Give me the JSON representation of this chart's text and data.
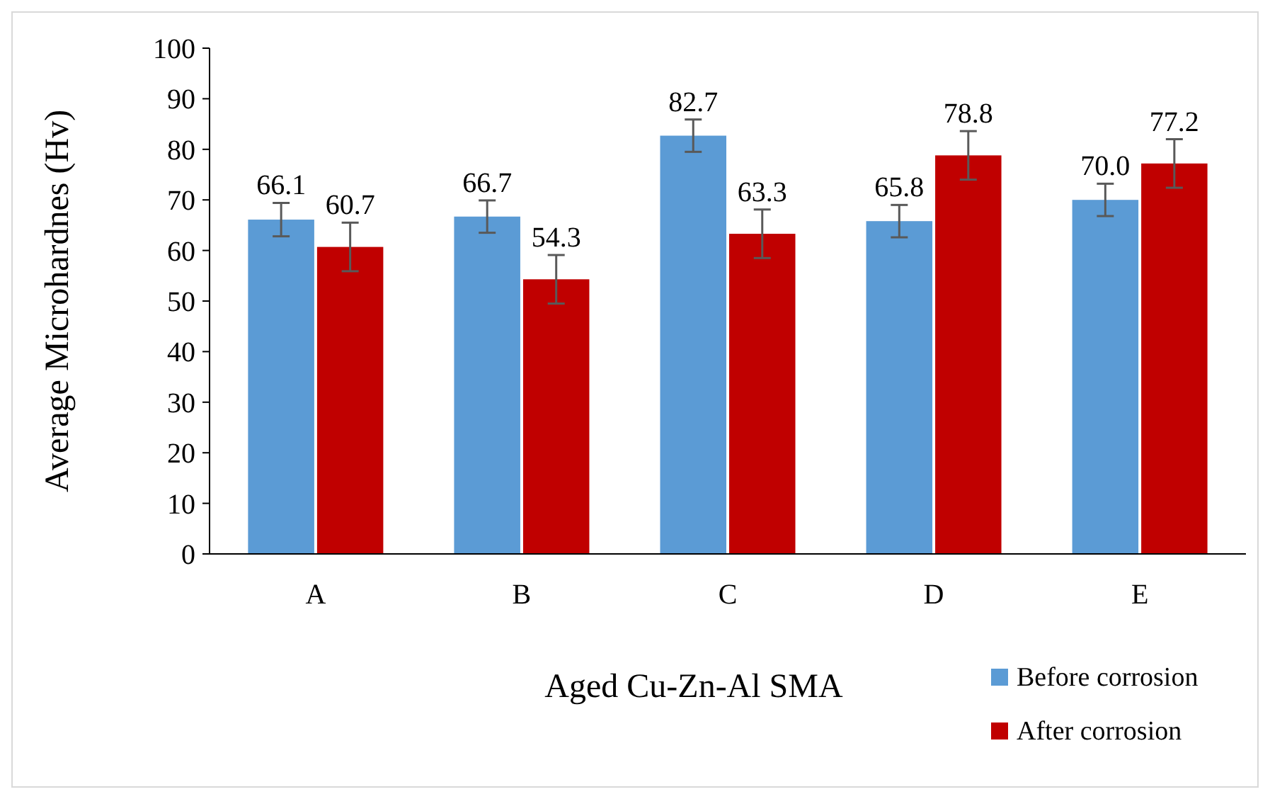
{
  "chart_data": {
    "type": "bar",
    "xlabel": "Aged Cu-Zn-Al SMA",
    "ylabel": "Average Microhardnes (Hv)",
    "categories": [
      "A",
      "B",
      "C",
      "D",
      "E"
    ],
    "ylim": [
      0,
      100
    ],
    "yticks": [
      0,
      10,
      20,
      30,
      40,
      50,
      60,
      70,
      80,
      90,
      100
    ],
    "grid": false,
    "legend": "bottom right",
    "data_labels": true,
    "series": [
      {
        "name": "Before corrosion",
        "color": "#5b9bd5",
        "values": [
          66.1,
          66.7,
          82.7,
          65.8,
          70.0
        ],
        "value_labels": [
          "66.1",
          "66.7",
          "82.7",
          "65.8",
          "70.0"
        ],
        "errors": [
          3.3,
          3.2,
          3.2,
          3.2,
          3.2
        ]
      },
      {
        "name": "After corrosion",
        "color": "#c00000",
        "values": [
          60.7,
          54.3,
          63.3,
          78.8,
          77.2
        ],
        "value_labels": [
          "60.7",
          "54.3",
          "63.3",
          "78.8",
          "77.2"
        ],
        "errors": [
          4.8,
          4.8,
          4.8,
          4.8,
          4.8
        ]
      }
    ]
  }
}
